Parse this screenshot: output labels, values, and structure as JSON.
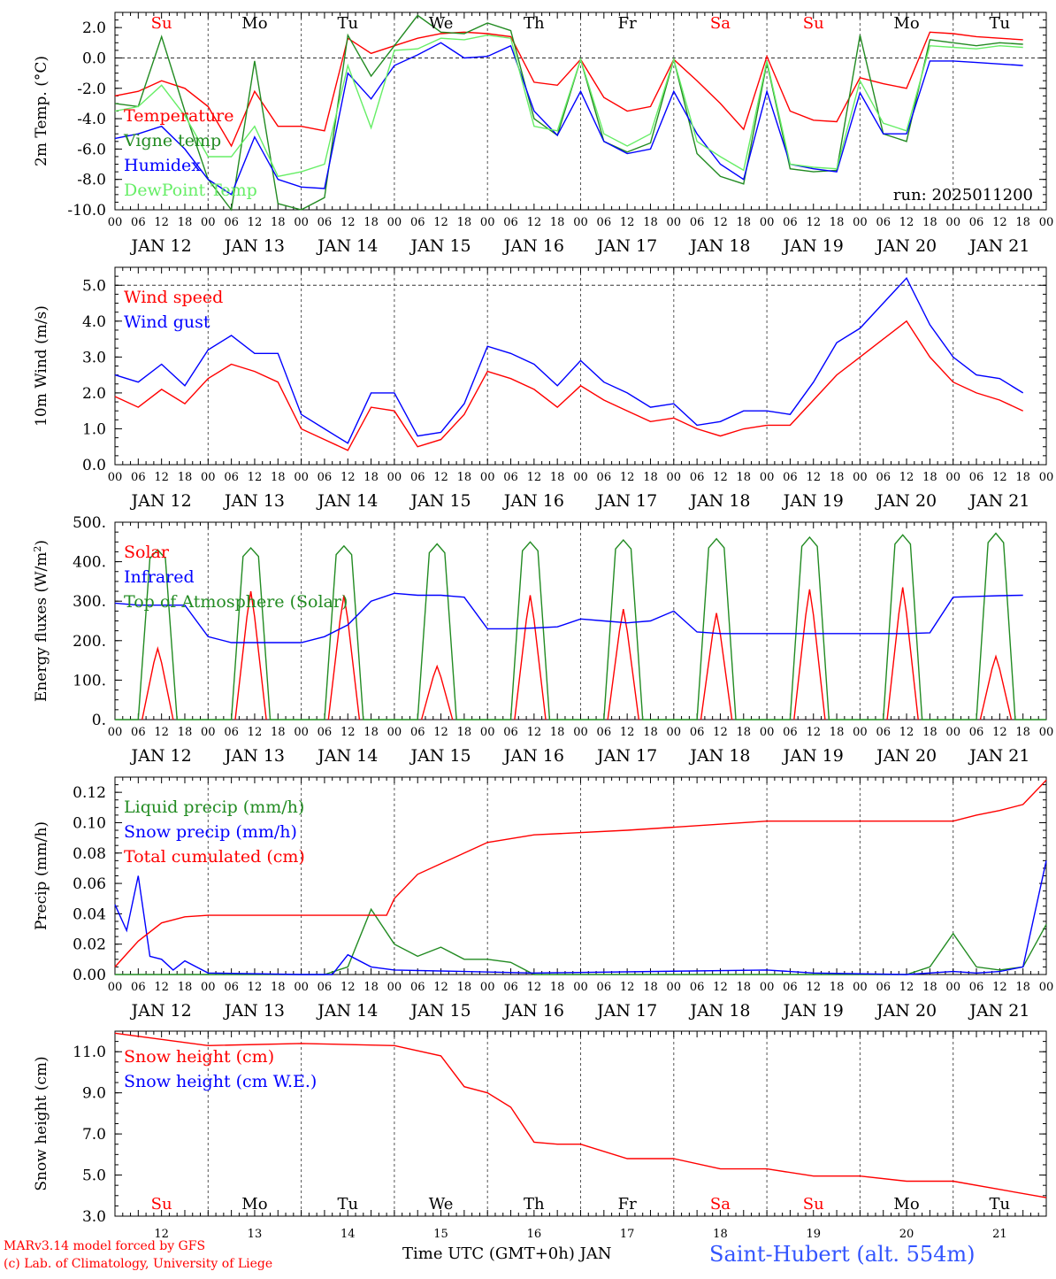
{
  "location": "Saint-Hubert (alt. 554m)",
  "footer": {
    "model": "MARv3.14 model forced by GFS",
    "credit": "(c) Lab. of Climatology, University of Liege",
    "xaxis_title": "Time UTC (GMT+0h) JAN",
    "day_numbers": [
      "12",
      "13",
      "14",
      "15",
      "16",
      "17",
      "18",
      "19",
      "20",
      "21"
    ]
  },
  "run_label": "run: 2025011200",
  "days": {
    "weekday_labels": [
      "Su",
      "Mo",
      "Tu",
      "We",
      "Th",
      "Fr",
      "Sa",
      "Su",
      "Mo",
      "Tu"
    ],
    "weekday_colors": [
      "#ff0000",
      "#000000",
      "#000000",
      "#000000",
      "#000000",
      "#000000",
      "#ff0000",
      "#ff0000",
      "#000000",
      "#000000"
    ],
    "date_labels": [
      "JAN 12",
      "JAN 13",
      "JAN 14",
      "JAN 15",
      "JAN 16",
      "JAN 17",
      "JAN 18",
      "JAN 19",
      "JAN 20",
      "JAN 21"
    ],
    "hour_ticks": [
      "00",
      "06",
      "12",
      "18"
    ],
    "final_tick": "00"
  },
  "chart_data": [
    {
      "type": "line",
      "id": "temp",
      "ylabel": "2m Temp. (°C)",
      "ylim": [
        -10,
        3
      ],
      "yticks": [
        "-10.0",
        "-8.0",
        "-6.0",
        "-4.0",
        "-2.0",
        "0.0",
        "2.0"
      ],
      "ytick_values": [
        -10,
        -8,
        -6,
        -4,
        -2,
        0,
        2
      ],
      "ref_line": 0,
      "x_unit": "hours since JAN 12 00 UTC",
      "series": [
        {
          "name": "Temperature",
          "color": "#ff0000",
          "x": [
            0,
            6,
            12,
            18,
            24,
            30,
            36,
            42,
            48,
            54,
            60,
            66,
            72,
            78,
            84,
            90,
            96,
            102,
            108,
            114,
            120,
            126,
            132,
            138,
            144,
            150,
            156,
            162,
            168,
            174,
            180,
            186,
            192,
            198,
            204,
            210,
            216,
            222,
            228,
            234
          ],
          "y": [
            -2.5,
            -2.2,
            -1.5,
            -2.0,
            -3.2,
            -5.8,
            -2.2,
            -4.5,
            -4.5,
            -4.8,
            1.3,
            0.3,
            0.8,
            1.3,
            1.6,
            1.7,
            1.6,
            1.4,
            -1.6,
            -1.8,
            -0.1,
            -2.6,
            -3.5,
            -3.2,
            -0.1,
            -1.5,
            -3.0,
            -4.7,
            0.1,
            -3.5,
            -4.1,
            -4.2,
            -1.3,
            -1.7,
            -2.0,
            1.7,
            1.6,
            1.4,
            1.3,
            1.2
          ]
        },
        {
          "name": "Vigne temp",
          "color": "#228b22",
          "x": [
            0,
            6,
            12,
            18,
            24,
            30,
            36,
            42,
            48,
            54,
            60,
            66,
            72,
            78,
            84,
            90,
            96,
            102,
            108,
            114,
            120,
            126,
            132,
            138,
            144,
            150,
            156,
            162,
            168,
            174,
            180,
            186,
            192,
            198,
            204,
            210,
            216,
            222,
            228,
            234
          ],
          "y": [
            -3.0,
            -3.2,
            1.4,
            -3.5,
            -8.0,
            -10.0,
            -0.2,
            -9.6,
            -10.0,
            -9.2,
            1.5,
            -1.2,
            0.8,
            2.8,
            1.7,
            1.6,
            2.3,
            1.8,
            -4.0,
            -5.1,
            -0.1,
            -5.5,
            -6.2,
            -5.6,
            -0.1,
            -6.3,
            -7.8,
            -8.3,
            -0.3,
            -7.3,
            -7.5,
            -7.4,
            1.5,
            -5.0,
            -5.5,
            1.2,
            1.0,
            0.8,
            1.0,
            0.9
          ]
        },
        {
          "name": "Humidex",
          "color": "#0000ff",
          "x": [
            0,
            6,
            12,
            18,
            24,
            30,
            36,
            42,
            48,
            54,
            60,
            66,
            72,
            78,
            84,
            90,
            96,
            102,
            108,
            114,
            120,
            126,
            132,
            138,
            144,
            150,
            156,
            162,
            168,
            174,
            180,
            186,
            192,
            198,
            204,
            210,
            216,
            222,
            228,
            234
          ],
          "y": [
            -5.3,
            -5.0,
            -4.5,
            -6.0,
            -8.0,
            -9.0,
            -5.2,
            -8.0,
            -8.5,
            -8.6,
            -1.0,
            -2.7,
            -0.5,
            0.2,
            1.0,
            0.0,
            0.1,
            0.8,
            -3.5,
            -5.1,
            -2.2,
            -5.5,
            -6.3,
            -6.0,
            -2.2,
            -5.0,
            -7.0,
            -8.0,
            -2.2,
            -7.0,
            -7.3,
            -7.5,
            -2.3,
            -5.0,
            -5.0,
            -0.2,
            -0.2,
            -0.3,
            -0.4,
            -0.5
          ]
        },
        {
          "name": "DewPoint Temp",
          "color": "#66ee66",
          "x": [
            0,
            6,
            12,
            18,
            24,
            30,
            36,
            42,
            48,
            54,
            60,
            66,
            72,
            78,
            84,
            90,
            96,
            102,
            108,
            114,
            120,
            126,
            132,
            138,
            144,
            150,
            156,
            162,
            168,
            174,
            180,
            186,
            192,
            198,
            204,
            210,
            216,
            222,
            228,
            234
          ],
          "y": [
            -3.5,
            -3.2,
            -1.8,
            -3.8,
            -6.5,
            -6.5,
            -4.5,
            -7.8,
            -7.5,
            -7.0,
            -0.5,
            -4.6,
            0.5,
            0.6,
            1.3,
            1.2,
            1.5,
            1.3,
            -4.5,
            -4.8,
            -0.1,
            -5.0,
            -5.8,
            -5.0,
            -0.1,
            -5.5,
            -6.5,
            -7.4,
            -0.2,
            -7.0,
            -7.2,
            -7.3,
            -1.5,
            -4.3,
            -4.8,
            0.8,
            0.7,
            0.6,
            0.8,
            0.7
          ]
        }
      ]
    },
    {
      "type": "line",
      "id": "wind",
      "ylabel": "10m Wind (m/s)",
      "ylim": [
        0,
        5.5
      ],
      "yticks": [
        "0.0",
        "1.0",
        "2.0",
        "3.0",
        "4.0",
        "5.0"
      ],
      "ytick_values": [
        0,
        1,
        2,
        3,
        4,
        5
      ],
      "ref_line": 5,
      "x_unit": "hours since JAN 12 00 UTC",
      "series": [
        {
          "name": "Wind speed",
          "color": "#ff0000",
          "x": [
            0,
            6,
            12,
            18,
            24,
            30,
            36,
            42,
            48,
            54,
            60,
            66,
            72,
            78,
            84,
            90,
            96,
            102,
            108,
            114,
            120,
            126,
            132,
            138,
            144,
            150,
            156,
            162,
            168,
            174,
            180,
            186,
            192,
            198,
            204,
            210,
            216,
            222,
            228,
            234
          ],
          "y": [
            1.9,
            1.6,
            2.1,
            1.7,
            2.4,
            2.8,
            2.6,
            2.3,
            1.0,
            0.7,
            0.4,
            1.6,
            1.5,
            0.5,
            0.7,
            1.4,
            2.6,
            2.4,
            2.1,
            1.6,
            2.2,
            1.8,
            1.5,
            1.2,
            1.3,
            1.0,
            0.8,
            1.0,
            1.1,
            1.1,
            1.8,
            2.5,
            3.0,
            3.5,
            4.0,
            3.0,
            2.3,
            2.0,
            1.8,
            1.5
          ]
        },
        {
          "name": "Wind gust",
          "color": "#0000ff",
          "x": [
            0,
            6,
            12,
            18,
            24,
            30,
            36,
            42,
            48,
            54,
            60,
            66,
            72,
            78,
            84,
            90,
            96,
            102,
            108,
            114,
            120,
            126,
            132,
            138,
            144,
            150,
            156,
            162,
            168,
            174,
            180,
            186,
            192,
            198,
            204,
            210,
            216,
            222,
            228,
            234
          ],
          "y": [
            2.5,
            2.3,
            2.8,
            2.2,
            3.2,
            3.6,
            3.1,
            3.1,
            1.4,
            1.0,
            0.6,
            2.0,
            2.0,
            0.8,
            0.9,
            1.7,
            3.3,
            3.1,
            2.8,
            2.2,
            2.9,
            2.3,
            2.0,
            1.6,
            1.7,
            1.1,
            1.2,
            1.5,
            1.5,
            1.4,
            2.3,
            3.4,
            3.8,
            4.5,
            5.2,
            3.9,
            3.0,
            2.5,
            2.4,
            2.0
          ]
        }
      ]
    },
    {
      "type": "line",
      "id": "flux",
      "ylabel": "Energy fluxes (W/m2)",
      "ylim": [
        0,
        500
      ],
      "yticks": [
        "0.",
        "100.",
        "200.",
        "300.",
        "400.",
        "500."
      ],
      "ytick_values": [
        0,
        100,
        200,
        300,
        400,
        500
      ],
      "x_unit": "hours since JAN 12 00 UTC",
      "daylight_hours": [
        6,
        16
      ],
      "solar_peaks": [
        180,
        325,
        315,
        135,
        315,
        280,
        270,
        330,
        335,
        160
      ],
      "toa_peaks": [
        430,
        435,
        440,
        445,
        450,
        455,
        458,
        462,
        468,
        472
      ],
      "infrared": {
        "x": [
          0,
          6,
          12,
          18,
          24,
          30,
          36,
          42,
          48,
          54,
          60,
          66,
          72,
          78,
          84,
          90,
          96,
          102,
          108,
          114,
          120,
          126,
          132,
          138,
          144,
          150,
          156,
          162,
          168,
          174,
          180,
          186,
          192,
          198,
          204,
          210,
          216,
          222,
          228,
          234
        ],
        "y": [
          295,
          290,
          290,
          290,
          210,
          195,
          195,
          195,
          195,
          210,
          240,
          300,
          320,
          315,
          315,
          310,
          230,
          230,
          232,
          235,
          255,
          250,
          245,
          250,
          275,
          222,
          218,
          218,
          218,
          218,
          218,
          218,
          218,
          218,
          218,
          220,
          310,
          312,
          314,
          315
        ]
      },
      "series": [
        {
          "name": "Solar",
          "color": "#ff0000"
        },
        {
          "name": "Infrared",
          "color": "#0000ff"
        },
        {
          "name": "Top of Atmosphere (Solar)",
          "color": "#228b22"
        }
      ]
    },
    {
      "type": "line",
      "id": "precip",
      "ylabel": "Precip (mm/h)",
      "ylim": [
        0,
        0.13
      ],
      "yticks": [
        "0.00",
        "0.02",
        "0.04",
        "0.06",
        "0.08",
        "0.10",
        "0.12"
      ],
      "ytick_values": [
        0,
        0.02,
        0.04,
        0.06,
        0.08,
        0.1,
        0.12
      ],
      "x_unit": "hours since JAN 12 00 UTC",
      "series": [
        {
          "name": "Liquid precip (mm/h)",
          "color": "#228b22",
          "x": [
            0,
            48,
            54,
            60,
            66,
            72,
            78,
            84,
            90,
            96,
            102,
            108,
            120,
            204,
            210,
            216,
            222,
            228,
            234,
            240
          ],
          "y": [
            0,
            0,
            0,
            0.005,
            0.043,
            0.02,
            0.012,
            0.018,
            0.01,
            0.01,
            0.008,
            0,
            0,
            0,
            0.005,
            0.027,
            0.005,
            0.003,
            0.005,
            0.033
          ]
        },
        {
          "name": "Snow precip (mm/h)",
          "color": "#0000ff",
          "x": [
            0,
            3,
            6,
            9,
            12,
            15,
            18,
            24,
            48,
            56,
            60,
            66,
            72,
            108,
            168,
            180,
            204,
            216,
            222,
            228,
            234,
            240
          ],
          "y": [
            0.046,
            0.029,
            0.065,
            0.012,
            0.01,
            0.003,
            0.009,
            0.001,
            0,
            0,
            0.013,
            0.005,
            0.003,
            0.001,
            0.003,
            0.001,
            0,
            0.002,
            0.001,
            0.002,
            0.005,
            0.075
          ]
        },
        {
          "name": "Total cumulated (cm)",
          "color": "#ff0000",
          "x": [
            0,
            6,
            12,
            18,
            24,
            48,
            70,
            72,
            78,
            84,
            90,
            96,
            108,
            132,
            168,
            180,
            204,
            216,
            222,
            228,
            234,
            240
          ],
          "y": [
            0.005,
            0.022,
            0.034,
            0.038,
            0.039,
            0.039,
            0.039,
            0.05,
            0.066,
            0.073,
            0.08,
            0.087,
            0.092,
            0.095,
            0.101,
            0.101,
            0.101,
            0.101,
            0.105,
            0.108,
            0.112,
            0.128
          ]
        }
      ]
    },
    {
      "type": "line",
      "id": "snow",
      "ylabel": "Snow height (cm)",
      "ylim": [
        3,
        12
      ],
      "yticks": [
        "3.0",
        "5.0",
        "7.0",
        "9.0",
        "11.0"
      ],
      "ytick_values": [
        3,
        5,
        7,
        9,
        11
      ],
      "x_unit": "hours since JAN 12 00 UTC",
      "series": [
        {
          "name": "Snow height (cm)",
          "color": "#ff0000",
          "x": [
            0,
            12,
            24,
            48,
            72,
            84,
            90,
            96,
            102,
            108,
            114,
            120,
            132,
            144,
            156,
            168,
            180,
            192,
            204,
            216,
            240
          ],
          "y": [
            11.9,
            11.6,
            11.3,
            11.4,
            11.3,
            10.8,
            9.3,
            9.0,
            8.3,
            6.6,
            6.5,
            6.5,
            5.8,
            5.8,
            5.3,
            5.3,
            4.95,
            4.95,
            4.7,
            4.7,
            3.9
          ]
        },
        {
          "name": "Snow height (cm W.E.)",
          "color": "#0000ff",
          "x": [],
          "y": []
        }
      ]
    }
  ]
}
